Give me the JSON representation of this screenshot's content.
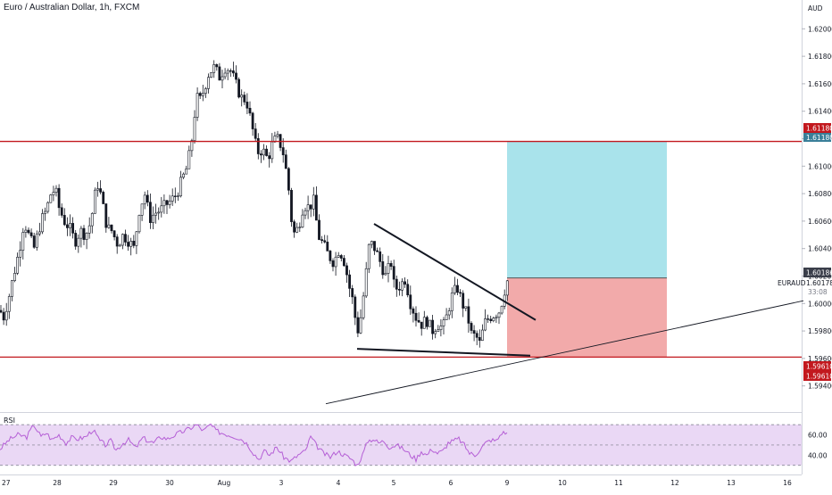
{
  "window": {
    "title": "Euro / Australian Dollar, 1h, FXCM"
  },
  "price_scale": {
    "currency": "AUD",
    "ticks": [
      "1.62000",
      "1.61800",
      "1.61600",
      "1.61400",
      "1.61200",
      "1.61000",
      "1.60800",
      "1.60600",
      "1.60400",
      "1.60200",
      "1.60000",
      "1.59800",
      "1.59600",
      "1.59400"
    ],
    "labels": {
      "resistance": "1.61180",
      "resistance_dup": "1.61180",
      "entry": "1.60186",
      "symbol": "EURAUD",
      "last": "1.60178",
      "countdown": "33:08",
      "support": "1.59610",
      "support_dup": "1.59610"
    }
  },
  "time_axis": {
    "labels": [
      "27",
      "28",
      "29",
      "30",
      "Aug",
      "3",
      "4",
      "5",
      "6",
      "9",
      "10",
      "11",
      "12",
      "13",
      "16"
    ]
  },
  "rsi": {
    "label": "RSI",
    "ticks": [
      "60.00",
      "40.00"
    ]
  },
  "colors": {
    "up_candle": "#ffffff",
    "down_candle": "#131722",
    "horizontal_line": "#c2181e",
    "target_zone": "#a9e3eb",
    "stop_zone": "#f2aaaa",
    "rsi_line": "#b55fd6",
    "rsi_band": "#ead8f5",
    "badge_red": "#c2181e",
    "badge_dark": "#3a3e4a"
  },
  "chart_data": {
    "type": "candlestick",
    "symbol": "EURAUD",
    "timeframe": "1h",
    "ylim": [
      1.5932,
      1.6208
    ],
    "levels": {
      "resistance": 1.6118,
      "support": 1.5961,
      "entry": 1.60186
    },
    "anchors": [
      [
        0,
        1.5995
      ],
      [
        4,
        1.599
      ],
      [
        10,
        1.6005
      ],
      [
        16,
        1.6023
      ],
      [
        22,
        1.604
      ],
      [
        27,
        1.606
      ],
      [
        32,
        1.605
      ],
      [
        38,
        1.604
      ],
      [
        46,
        1.606
      ],
      [
        52,
        1.6068
      ],
      [
        57,
        1.608
      ],
      [
        62,
        1.6083
      ],
      [
        66,
        1.607
      ],
      [
        72,
        1.606
      ],
      [
        78,
        1.6055
      ],
      [
        84,
        1.6045
      ],
      [
        90,
        1.6053
      ],
      [
        96,
        1.605
      ],
      [
        102,
        1.606
      ],
      [
        106,
        1.6078
      ],
      [
        110,
        1.6088
      ],
      [
        115,
        1.6072
      ],
      [
        120,
        1.6055
      ],
      [
        125,
        1.6053
      ],
      [
        132,
        1.6043
      ],
      [
        138,
        1.605
      ],
      [
        145,
        1.6045
      ],
      [
        150,
        1.604
      ],
      [
        156,
        1.6068
      ],
      [
        162,
        1.608
      ],
      [
        168,
        1.6062
      ],
      [
        174,
        1.6066
      ],
      [
        180,
        1.6068
      ],
      [
        186,
        1.6072
      ],
      [
        192,
        1.6075
      ],
      [
        198,
        1.608
      ],
      [
        204,
        1.609
      ],
      [
        210,
        1.61
      ],
      [
        215,
        1.612
      ],
      [
        220,
        1.615
      ],
      [
        224,
        1.6148
      ],
      [
        228,
        1.6155
      ],
      [
        234,
        1.6168
      ],
      [
        240,
        1.6172
      ],
      [
        246,
        1.6165
      ],
      [
        252,
        1.6172
      ],
      [
        258,
        1.617
      ],
      [
        264,
        1.616
      ],
      [
        270,
        1.615
      ],
      [
        276,
        1.6148
      ],
      [
        282,
        1.613
      ],
      [
        288,
        1.611
      ],
      [
        294,
        1.6112
      ],
      [
        300,
        1.6105
      ],
      [
        306,
        1.6118
      ],
      [
        312,
        1.612
      ],
      [
        318,
        1.6108
      ],
      [
        324,
        1.608
      ],
      [
        328,
        1.605
      ],
      [
        334,
        1.6055
      ],
      [
        340,
        1.6072
      ],
      [
        346,
        1.607
      ],
      [
        352,
        1.6075
      ],
      [
        356,
        1.605
      ],
      [
        362,
        1.6043
      ],
      [
        368,
        1.6035
      ],
      [
        374,
        1.603
      ],
      [
        380,
        1.604
      ],
      [
        386,
        1.603
      ],
      [
        392,
        1.601
      ],
      [
        396,
        1.6
      ],
      [
        400,
        1.5978
      ],
      [
        404,
        1.599
      ],
      [
        408,
        1.601
      ],
      [
        414,
        1.6045
      ],
      [
        420,
        1.604
      ],
      [
        426,
        1.603
      ],
      [
        432,
        1.602
      ],
      [
        438,
        1.603
      ],
      [
        442,
        1.601
      ],
      [
        448,
        1.6013
      ],
      [
        454,
        1.6018
      ],
      [
        460,
        1.6
      ],
      [
        466,
        1.599
      ],
      [
        472,
        1.5985
      ],
      [
        478,
        1.5988
      ],
      [
        484,
        1.598
      ],
      [
        490,
        1.5985
      ],
      [
        496,
        1.5982
      ],
      [
        500,
        1.599
      ],
      [
        506,
        1.6005
      ],
      [
        512,
        1.6012
      ],
      [
        518,
        1.6
      ],
      [
        524,
        1.599
      ],
      [
        528,
        1.5978
      ],
      [
        534,
        1.5975
      ],
      [
        538,
        1.597
      ],
      [
        542,
        1.5985
      ],
      [
        548,
        1.599
      ],
      [
        554,
        1.5992
      ],
      [
        560,
        1.5995
      ],
      [
        566,
        1.6012
      ],
      [
        569,
        1.60178
      ]
    ],
    "drawings": {
      "triangle_upper": [
        [
          419,
          1.6058
        ],
        [
          600,
          1.5988
        ]
      ],
      "triangle_lower": [
        [
          400,
          1.5967
        ],
        [
          594,
          1.5962
        ]
      ],
      "trendline": [
        [
          365,
          1.5927
        ],
        [
          900,
          1.6002
        ]
      ]
    },
    "position": {
      "x_start": 568,
      "x_end": 747,
      "entry": 1.60186,
      "target": 1.6118,
      "stop": 1.5961
    },
    "rsi": {
      "ylim": [
        28,
        78
      ],
      "overbought": 70,
      "middle": 50,
      "oversold": 30,
      "anchors": [
        [
          0,
          46
        ],
        [
          10,
          55
        ],
        [
          20,
          60
        ],
        [
          30,
          58
        ],
        [
          38,
          70
        ],
        [
          46,
          58
        ],
        [
          52,
          62
        ],
        [
          58,
          55
        ],
        [
          66,
          60
        ],
        [
          74,
          52
        ],
        [
          80,
          57
        ],
        [
          88,
          56
        ],
        [
          96,
          58
        ],
        [
          104,
          65
        ],
        [
          112,
          54
        ],
        [
          118,
          50
        ],
        [
          124,
          54
        ],
        [
          130,
          45
        ],
        [
          138,
          52
        ],
        [
          144,
          55
        ],
        [
          152,
          47
        ],
        [
          160,
          57
        ],
        [
          166,
          54
        ],
        [
          172,
          52
        ],
        [
          180,
          58
        ],
        [
          188,
          56
        ],
        [
          196,
          60
        ],
        [
          204,
          63
        ],
        [
          212,
          66
        ],
        [
          220,
          70
        ],
        [
          228,
          64
        ],
        [
          236,
          70
        ],
        [
          242,
          64
        ],
        [
          248,
          62
        ],
        [
          256,
          60
        ],
        [
          264,
          58
        ],
        [
          272,
          55
        ],
        [
          278,
          50
        ],
        [
          284,
          42
        ],
        [
          290,
          36
        ],
        [
          296,
          44
        ],
        [
          302,
          40
        ],
        [
          310,
          48
        ],
        [
          318,
          38
        ],
        [
          326,
          34
        ],
        [
          334,
          40
        ],
        [
          342,
          44
        ],
        [
          348,
          58
        ],
        [
          354,
          50
        ],
        [
          362,
          42
        ],
        [
          370,
          38
        ],
        [
          378,
          44
        ],
        [
          386,
          40
        ],
        [
          394,
          36
        ],
        [
          400,
          30
        ],
        [
          406,
          40
        ],
        [
          412,
          54
        ],
        [
          418,
          56
        ],
        [
          424,
          52
        ],
        [
          430,
          54
        ],
        [
          436,
          48
        ],
        [
          444,
          50
        ],
        [
          452,
          46
        ],
        [
          460,
          40
        ],
        [
          466,
          36
        ],
        [
          472,
          44
        ],
        [
          478,
          40
        ],
        [
          484,
          46
        ],
        [
          490,
          42
        ],
        [
          496,
          44
        ],
        [
          502,
          52
        ],
        [
          508,
          54
        ],
        [
          514,
          56
        ],
        [
          520,
          50
        ],
        [
          526,
          42
        ],
        [
          532,
          40
        ],
        [
          538,
          46
        ],
        [
          544,
          52
        ],
        [
          550,
          55
        ],
        [
          556,
          54
        ],
        [
          562,
          62
        ],
        [
          568,
          62
        ]
      ]
    }
  }
}
